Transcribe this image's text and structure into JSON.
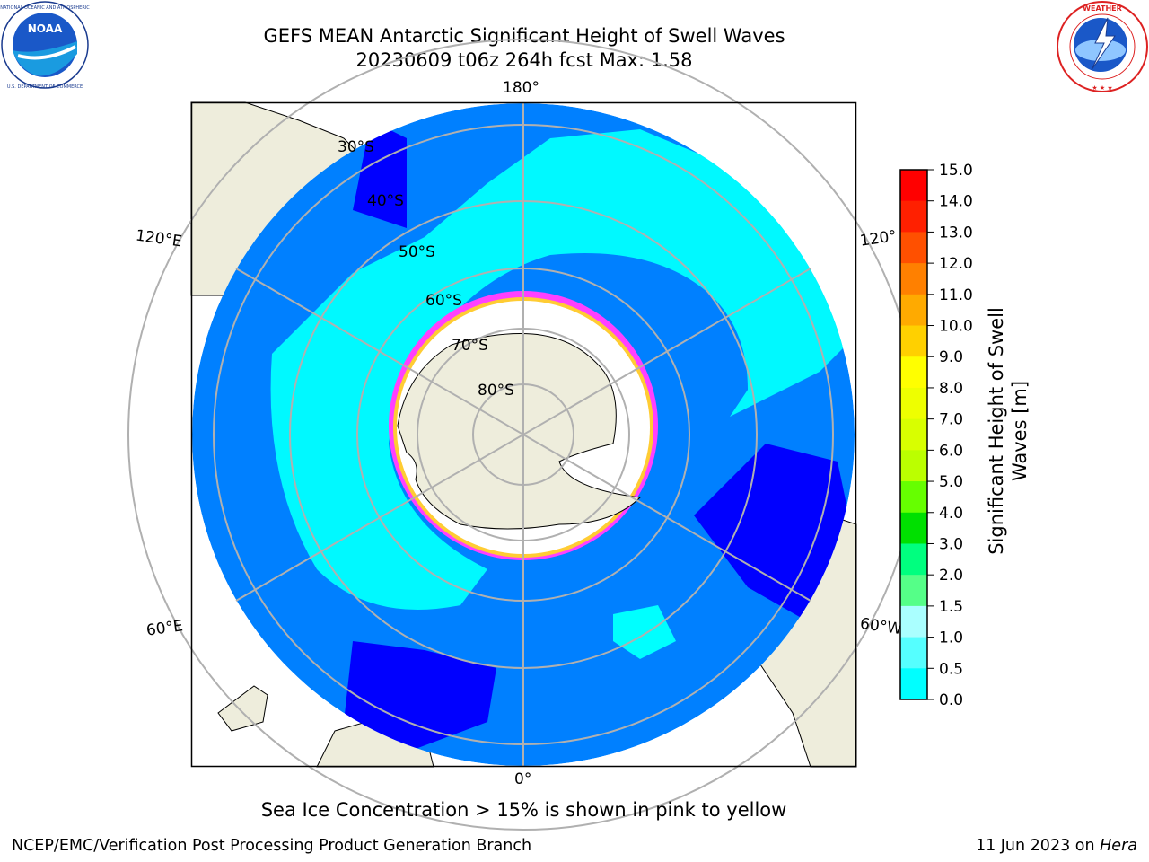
{
  "header": {
    "title_line1": "GEFS MEAN Antarctic Significant Height of Swell Waves",
    "title_line2": "20230609 t06z 264h fcst   Max: 1.58"
  },
  "logos": {
    "left": {
      "name": "noaa-logo",
      "text": "NOAA",
      "ring_text": "NATIONAL OCEANIC AND ATMOSPHERIC ADMINISTRATION · U.S. DEPARTMENT OF COMMERCE"
    },
    "right": {
      "name": "nws-logo",
      "ring_text": "NATIONAL WEATHER SERVICE"
    }
  },
  "map": {
    "projection": "south-polar-stereographic",
    "longitude_labels": [
      "180°",
      "120°E",
      "120°",
      "60°E",
      "60°W",
      "0°"
    ],
    "latitude_labels": [
      "30°S",
      "40°S",
      "50°S",
      "60°S",
      "70°S",
      "80°S"
    ],
    "colors": {
      "land": "#eeeddc",
      "ocean_bin_0_0_5": "#0000ff",
      "ocean_bin_0_5_1_0": "#0080ff",
      "ocean_bin_1_0_1_5": "#00ffff",
      "ice_edge_pink": "#ff40ff",
      "ice_edge_yellow": "#ffcc33",
      "grid": "#b0b0b0"
    }
  },
  "colorbar": {
    "title": "Significant Height of Swell Waves [m]",
    "title_line1": "Significant Height of Swell",
    "title_line2": "Waves [m]",
    "ticks": [
      "15.0",
      "14.0",
      "13.0",
      "12.0",
      "11.0",
      "10.0",
      "9.0",
      "8.0",
      "7.0",
      "6.0",
      "5.0",
      "4.0",
      "3.0",
      "2.0",
      "1.5",
      "1.0",
      "0.5",
      "0.0"
    ],
    "colors_top_to_bottom": [
      "#ff0000",
      "#ff2000",
      "#ff5000",
      "#ff8000",
      "#ffaa00",
      "#ffd000",
      "#ffff00",
      "#eeff00",
      "#d8ff00",
      "#bbff00",
      "#66ff00",
      "#00e000",
      "#00ff7f",
      "#55ff88",
      "#aaffff",
      "#55ffff",
      "#00ffff",
      "#0080ff",
      "#0000ff"
    ]
  },
  "note": "Sea Ice Concentration > 15% is shown in pink to yellow",
  "footer": {
    "left": "NCEP/EMC/Verification Post Processing Product Generation Branch",
    "right_prefix": "11 Jun 2023 on ",
    "right_host": "Hera"
  }
}
